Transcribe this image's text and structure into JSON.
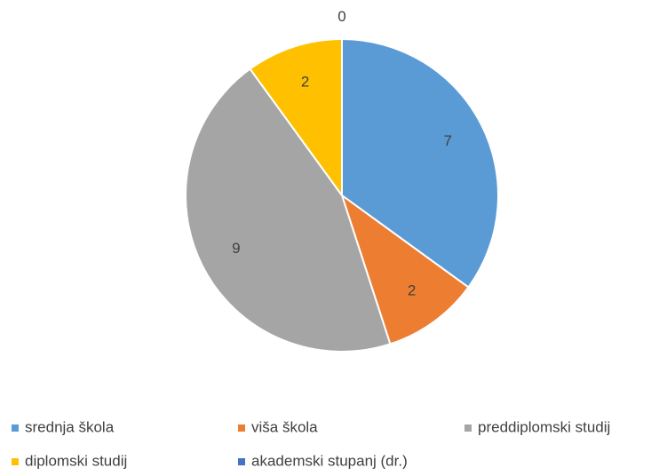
{
  "chart_data": {
    "type": "pie",
    "categories": [
      "srednja škola",
      "viša škola",
      "preddiplomski studij",
      "diplomski studij",
      "akademski stupanj (dr.)"
    ],
    "values": [
      7,
      2,
      9,
      2,
      0
    ],
    "colors": [
      "#5b9bd5",
      "#ed7d31",
      "#a5a5a5",
      "#ffc000",
      "#4472c4"
    ],
    "legend": "bottom"
  }
}
